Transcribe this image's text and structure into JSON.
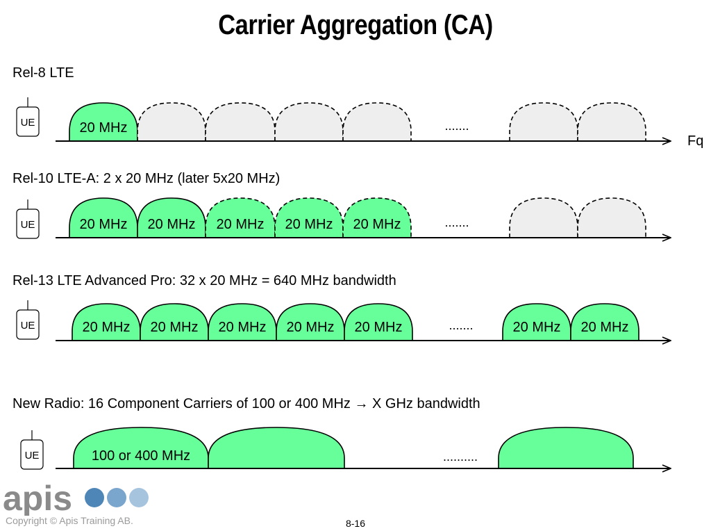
{
  "title": "Carrier Aggregation (CA)",
  "axis_label": "Fq",
  "ue_label": "UE",
  "dots_short": ".......",
  "dots_long": "..........",
  "rows": [
    {
      "label": "Rel-8 LTE",
      "carriers": [
        {
          "label": "20 MHz",
          "style": "active"
        },
        {
          "label": "",
          "style": "inactive"
        },
        {
          "label": "",
          "style": "inactive"
        },
        {
          "label": "",
          "style": "inactive"
        },
        {
          "label": "",
          "style": "inactive"
        },
        {
          "label": "",
          "style": "inactive"
        },
        {
          "label": "",
          "style": "inactive"
        }
      ]
    },
    {
      "label": "Rel-10 LTE-A: 2 x 20 MHz (later 5x20 MHz)",
      "carriers": [
        {
          "label": "20 MHz",
          "style": "active"
        },
        {
          "label": "20 MHz",
          "style": "active"
        },
        {
          "label": "20 MHz",
          "style": "later"
        },
        {
          "label": "20 MHz",
          "style": "later"
        },
        {
          "label": "20 MHz",
          "style": "later"
        },
        {
          "label": "",
          "style": "inactive"
        },
        {
          "label": "",
          "style": "inactive"
        }
      ]
    },
    {
      "label": "Rel-13 LTE Advanced Pro: 32 x 20 MHz = 640 MHz bandwidth",
      "carriers": [
        {
          "label": "20 MHz",
          "style": "active"
        },
        {
          "label": "20 MHz",
          "style": "active"
        },
        {
          "label": "20 MHz",
          "style": "active"
        },
        {
          "label": "20 MHz",
          "style": "active"
        },
        {
          "label": "20 MHz",
          "style": "active"
        },
        {
          "label": "20 MHz",
          "style": "active"
        },
        {
          "label": "20 MHz",
          "style": "active"
        }
      ]
    },
    {
      "label": "New Radio: 16 Component Carriers of 100 or 400 MHz → X GHz bandwidth",
      "carriers": [
        {
          "label": "100 or 400 MHz",
          "style": "active"
        },
        {
          "label": "",
          "style": "active"
        },
        {
          "label": "",
          "style": "active"
        }
      ]
    }
  ],
  "logo": {
    "text": "apis",
    "dot_colors": [
      "#4f86b8",
      "#7aa5cc",
      "#a7c4df",
      "#c9dbec"
    ]
  },
  "copyright": "Copyright © Apis Training AB.",
  "page_number": "8-16",
  "colors": {
    "active_fill": "#66ff99",
    "inactive_fill": "#eeeeee",
    "line": "#000000"
  }
}
